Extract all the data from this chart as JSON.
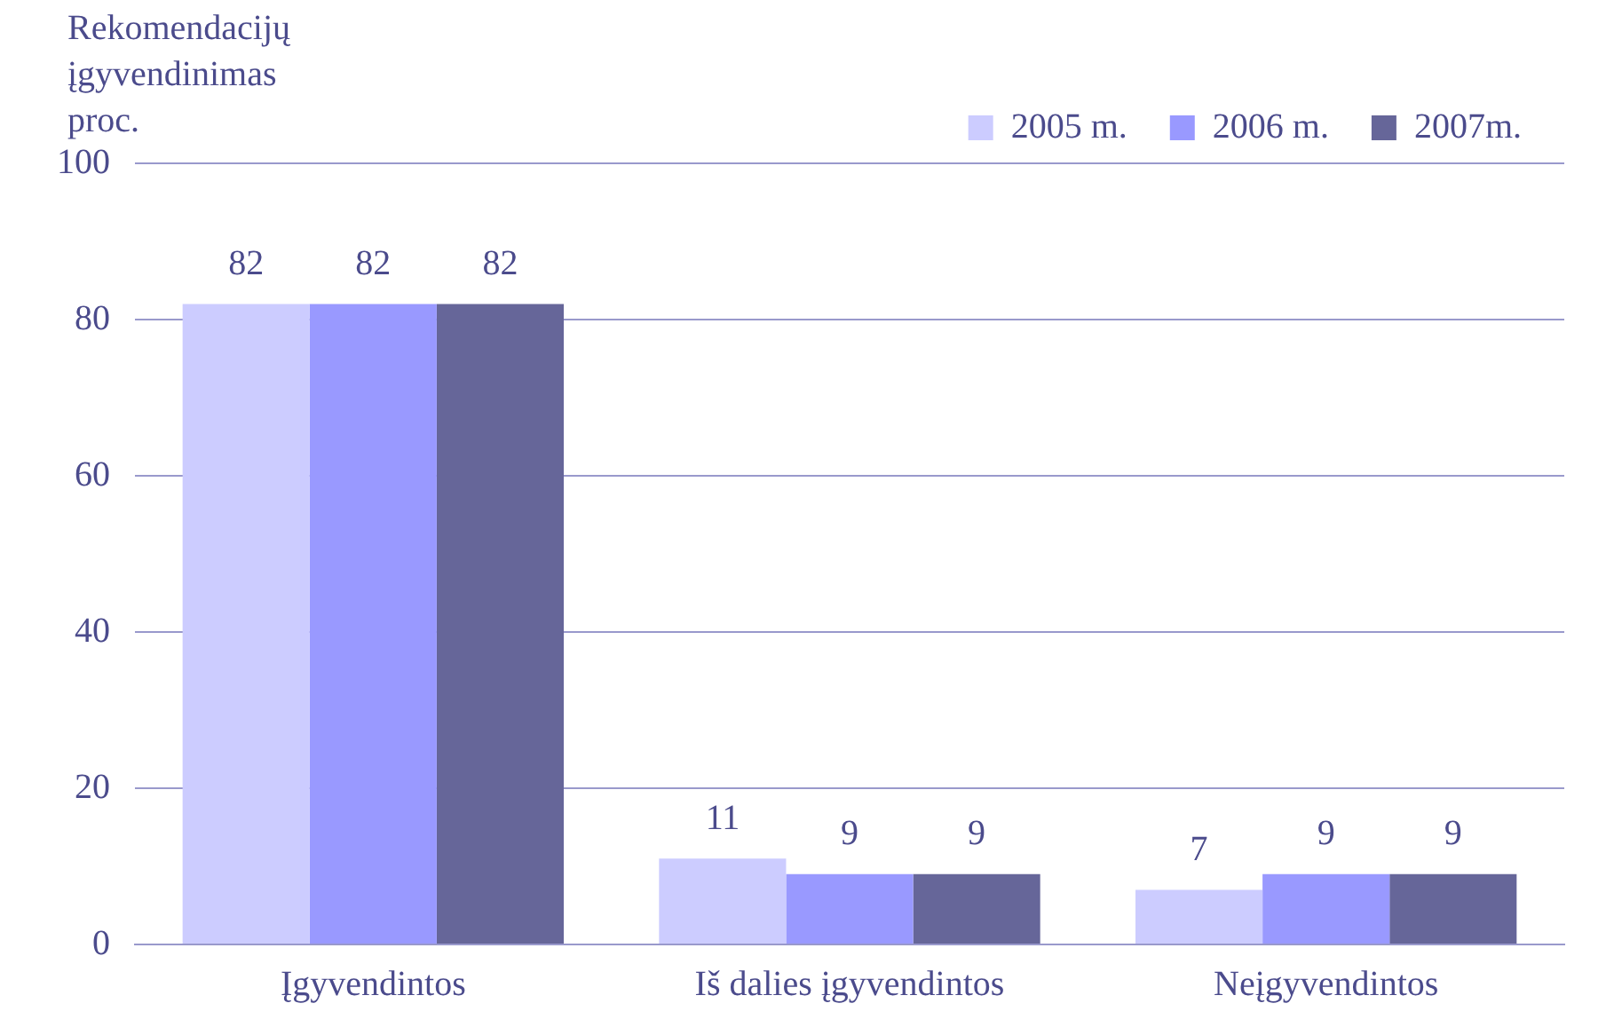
{
  "chart_data": {
    "type": "bar",
    "ylabel": "Rekomendacijų įgyvendinimas proc.",
    "categories": [
      "Įgyvendintos",
      "Iš dalies įgyvendintos",
      "Neįgyvendintos"
    ],
    "series": [
      {
        "name": "2005 m.",
        "color": "#ccccff",
        "values": [
          82,
          11,
          7
        ]
      },
      {
        "name": "2006 m.",
        "color": "#9999ff",
        "values": [
          82,
          9,
          9
        ]
      },
      {
        "name": "2007m.",
        "color": "#666699",
        "values": [
          82,
          9,
          9
        ]
      }
    ],
    "ylim": [
      0,
      100
    ],
    "yticks": [
      0,
      20,
      40,
      60,
      80,
      100
    ],
    "grid": "y",
    "legend": "top right",
    "data_labels": true
  }
}
